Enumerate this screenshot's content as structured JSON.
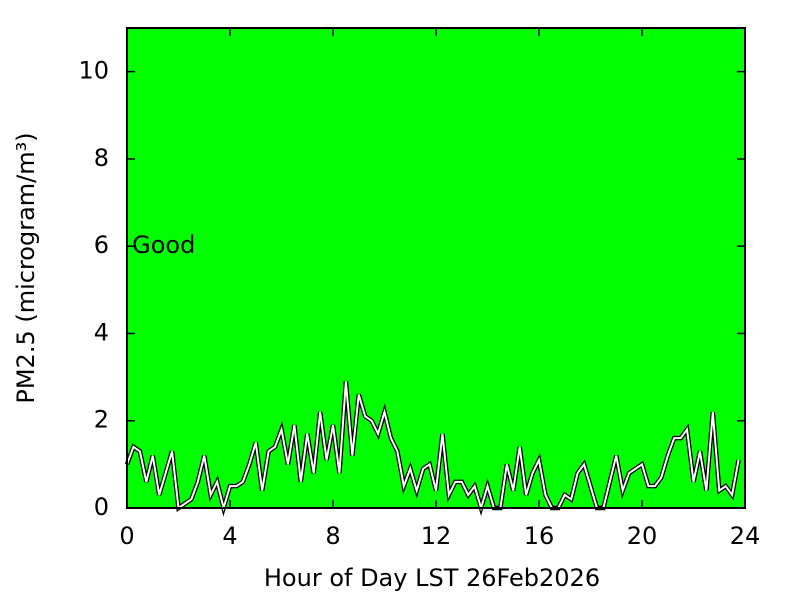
{
  "chart_data": {
    "type": "line",
    "x_label": "Hour of Day LST 26Feb2026",
    "y_label": "PM2.5 (microgram/m³)",
    "annotation": {
      "text": "Good",
      "x": 0.2,
      "y": 6
    },
    "background": "#00ff00",
    "xlim": [
      0,
      24
    ],
    "xticks": [
      0,
      4,
      8,
      12,
      16,
      20,
      24
    ],
    "ylim": [
      0,
      11
    ],
    "yticks": [
      0,
      2,
      4,
      6,
      8,
      10
    ],
    "series": [
      {
        "color": "#ffffff",
        "outline": "#000000",
        "x": [
          0,
          0.25,
          0.5,
          0.75,
          1,
          1.25,
          1.5,
          1.75,
          2,
          2.25,
          2.5,
          2.75,
          3,
          3.25,
          3.5,
          3.75,
          4,
          4.25,
          4.5,
          4.75,
          5,
          5.25,
          5.5,
          5.75,
          6,
          6.25,
          6.5,
          6.75,
          7,
          7.25,
          7.5,
          7.75,
          8,
          8.25,
          8.5,
          8.75,
          9,
          9.25,
          9.5,
          9.75,
          10,
          10.25,
          10.5,
          10.75,
          11,
          11.25,
          11.5,
          11.75,
          12,
          12.25,
          12.5,
          12.75,
          13,
          13.25,
          13.5,
          13.75,
          14,
          14.25,
          14.5,
          14.75,
          15,
          15.25,
          15.5,
          15.75,
          16,
          16.25,
          16.5,
          16.75,
          17,
          17.25,
          17.5,
          17.75,
          18,
          18.25,
          18.5,
          18.75,
          19,
          19.25,
          19.5,
          19.75,
          20,
          20.25,
          20.5,
          20.75,
          21,
          21.25,
          21.5,
          21.75,
          22,
          22.25,
          22.5,
          22.75,
          23,
          23.25,
          23.5,
          23.75
        ],
        "values": [
          1.0,
          1.4,
          1.3,
          0.6,
          1.2,
          0.3,
          0.8,
          1.3,
          0.0,
          0.1,
          0.2,
          0.6,
          1.2,
          0.3,
          0.6,
          0.0,
          0.5,
          0.5,
          0.6,
          1.0,
          1.5,
          0.4,
          1.3,
          1.4,
          1.8,
          1.0,
          1.9,
          0.6,
          1.7,
          0.8,
          2.2,
          1.1,
          1.9,
          0.8,
          2.9,
          1.2,
          2.6,
          2.1,
          2.0,
          1.7,
          2.2,
          1.6,
          1.3,
          0.5,
          0.9,
          0.4,
          0.9,
          1.0,
          0.4,
          1.7,
          0.3,
          0.6,
          0.6,
          0.3,
          0.5,
          0.0,
          0.5,
          0.0,
          0.0,
          1.0,
          0.4,
          1.4,
          0.3,
          0.8,
          1.1,
          0.3,
          0.0,
          0.0,
          0.3,
          0.2,
          0.8,
          1.0,
          0.5,
          0.0,
          0.0,
          0.6,
          1.2,
          0.4,
          0.8,
          0.9,
          1.0,
          0.5,
          0.5,
          0.7,
          1.2,
          1.6,
          1.6,
          1.8,
          0.6,
          1.3,
          0.4,
          2.2,
          0.4,
          0.5,
          0.3,
          1.1
        ]
      }
    ]
  }
}
